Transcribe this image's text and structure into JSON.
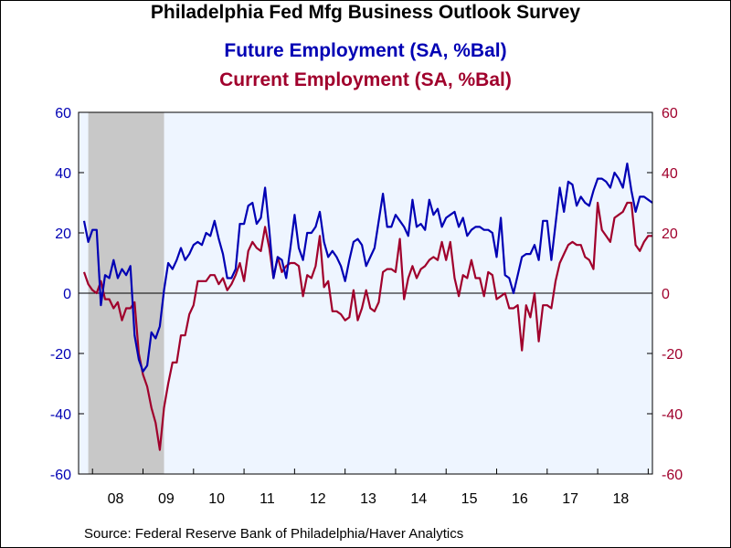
{
  "titles": {
    "main": "Philadelphia Fed Mfg Business Outlook Survey",
    "series1": "Future Employment (SA, %Bal)",
    "series2": "Current Employment (SA, %Bal)"
  },
  "source": "Source:  Federal Reserve Bank of Philadelphia/Haver Analytics",
  "chart_data": {
    "type": "line",
    "ylim": [
      -60,
      60
    ],
    "y_ticks": [
      "-60",
      "-40",
      "-20",
      "0",
      "20",
      "40",
      "60"
    ],
    "y_ticks_right": [
      "-60",
      "-40",
      "-20",
      "0",
      "20",
      "40",
      "60"
    ],
    "x_ticks": [
      "08",
      "09",
      "10",
      "11",
      "12",
      "13",
      "14",
      "15",
      "16",
      "17",
      "18"
    ],
    "x_start": "2007-11",
    "grid": false,
    "recession": {
      "start": "2007-12",
      "end": "2009-06"
    },
    "colors": {
      "future": "#0000b4",
      "current": "#a0002c",
      "plot_bg": "#eef5ff",
      "recession": "#c8c8c8"
    },
    "series": [
      {
        "name": "Future Employment (SA, %Bal)",
        "color": "#0000b4",
        "values": [
          24,
          17,
          21,
          21,
          -4,
          6,
          5,
          11,
          5,
          8,
          6,
          9,
          -14,
          -22,
          -26,
          -24,
          -13,
          -15,
          -11,
          1,
          10,
          8,
          11,
          15,
          11,
          13,
          16,
          17,
          16,
          20,
          19,
          24,
          18,
          13,
          5,
          5,
          8,
          23,
          23,
          29,
          30,
          23,
          25,
          35,
          21,
          5,
          12,
          11,
          5,
          15,
          26,
          15,
          11,
          20,
          20,
          22,
          27,
          17,
          12,
          14,
          12,
          9,
          4,
          11,
          17,
          18,
          16,
          9,
          12,
          15,
          24,
          33,
          22,
          22,
          26,
          24,
          22,
          19,
          31,
          22,
          23,
          21,
          31,
          26,
          28,
          22,
          25,
          26,
          27,
          22,
          25,
          19,
          21,
          22,
          22,
          21,
          21,
          20,
          12,
          25,
          6,
          5,
          0,
          6,
          12,
          13,
          13,
          16,
          11,
          24,
          24,
          11,
          23,
          35,
          27,
          37,
          36,
          29,
          32,
          30,
          29,
          34,
          38,
          38,
          37,
          35,
          40,
          38,
          35,
          43,
          34,
          27,
          32,
          32,
          31,
          30
        ]
      },
      {
        "name": "Current Employment (SA, %Bal)",
        "color": "#a0002c",
        "values": [
          7,
          3,
          1,
          0,
          4,
          -2,
          -2,
          -5,
          -3,
          -9,
          -5,
          -5,
          -3,
          -20,
          -27,
          -31,
          -38,
          -43,
          -52,
          -38,
          -30,
          -23,
          -23,
          -14,
          -14,
          -7,
          -4,
          4,
          4,
          4,
          6,
          6,
          3,
          5,
          1,
          3,
          6,
          10,
          4,
          14,
          17,
          15,
          14,
          22,
          15,
          5,
          12,
          7,
          9,
          10,
          10,
          9,
          -1,
          6,
          5,
          9,
          19,
          2,
          4,
          -6,
          -6,
          -7,
          -9,
          -8,
          1,
          -9,
          -5,
          1,
          -5,
          -6,
          -3,
          7,
          8,
          8,
          7,
          18,
          -2,
          5,
          9,
          5,
          8,
          9,
          11,
          12,
          11,
          17,
          11,
          17,
          5,
          -1,
          6,
          5,
          11,
          5,
          5,
          -1,
          7,
          6,
          -2,
          -1,
          0,
          -5,
          -5,
          -4,
          -19,
          -4,
          -8,
          0,
          -16,
          -4,
          -4,
          -5,
          4,
          10,
          13,
          16,
          17,
          16,
          16,
          12,
          11,
          8,
          30,
          21,
          19,
          17,
          25,
          26,
          27,
          30,
          30,
          16,
          14,
          17,
          19,
          19
        ]
      }
    ]
  }
}
